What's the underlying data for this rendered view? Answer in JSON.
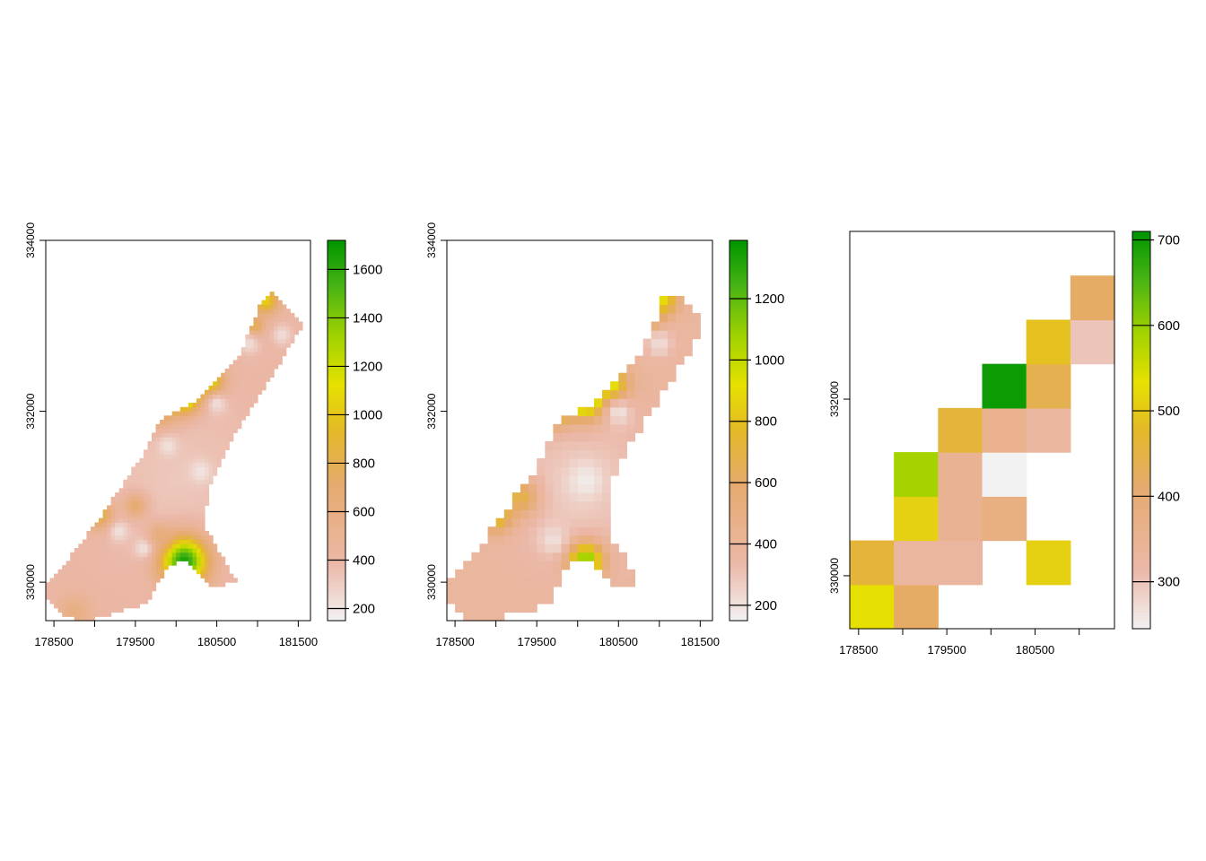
{
  "chart_data": [
    {
      "type": "heatmap",
      "title": "",
      "xlabel": "",
      "ylabel": "",
      "x_ticks": [
        178500,
        179500,
        180500,
        181500
      ],
      "y_ticks": [
        330000,
        332000,
        334000
      ],
      "x_tick_labels": [
        "178500",
        "179500",
        "180500",
        "181500"
      ],
      "y_tick_labels": [
        "330000",
        "332000",
        "334000"
      ],
      "xlim": [
        178400,
        181650
      ],
      "ylim": [
        329550,
        334000
      ],
      "legend": {
        "placement": "right",
        "min": 150,
        "max": 1720,
        "ticks": [
          200,
          400,
          600,
          800,
          1000,
          1200,
          1400,
          1600
        ],
        "tick_labels": [
          "200",
          "400",
          "600",
          "800",
          "1000",
          "1200",
          "1400",
          "1600"
        ]
      },
      "cell_size": 50,
      "region": [
        [
          178350,
          329900
        ],
        [
          178700,
          330300
        ],
        [
          179100,
          330800
        ],
        [
          179600,
          331500
        ],
        [
          179800,
          331900
        ],
        [
          180200,
          332100
        ],
        [
          180400,
          332250
        ],
        [
          180800,
          332700
        ],
        [
          181050,
          333300
        ],
        [
          181200,
          333400
        ],
        [
          181550,
          333000
        ],
        [
          181100,
          332300
        ],
        [
          180700,
          331700
        ],
        [
          180400,
          331100
        ],
        [
          180350,
          330650
        ],
        [
          180750,
          330000
        ],
        [
          180450,
          329950
        ],
        [
          180100,
          330250
        ],
        [
          179900,
          330200
        ],
        [
          179650,
          329750
        ],
        [
          178900,
          329550
        ],
        [
          178600,
          329600
        ]
      ],
      "base": 400,
      "mid": 320,
      "mid_center": [
        180000,
        331200
      ],
      "mid_radius": 1500,
      "hotspots": [
        [
          180100,
          330250,
          200,
          1650
        ],
        [
          180100,
          332200,
          140,
          1500
        ],
        [
          179750,
          332150,
          180,
          1300
        ],
        [
          180400,
          332350,
          130,
          1150
        ],
        [
          181100,
          333300,
          110,
          1050
        ],
        [
          180950,
          333000,
          90,
          850
        ],
        [
          179050,
          330800,
          120,
          900
        ],
        [
          179500,
          330900,
          100,
          700
        ],
        [
          179800,
          330550,
          100,
          650
        ],
        [
          178750,
          329650,
          150,
          600
        ],
        [
          179600,
          332050,
          120,
          1000
        ]
      ],
      "lows": [
        [
          180300,
          331300,
          90,
          200
        ],
        [
          180500,
          332100,
          90,
          230
        ],
        [
          179900,
          331600,
          80,
          220
        ],
        [
          179300,
          330600,
          80,
          220
        ],
        [
          180900,
          332800,
          90,
          240
        ],
        [
          181300,
          332900,
          80,
          230
        ],
        [
          179600,
          330400,
          80,
          220
        ]
      ]
    },
    {
      "type": "heatmap",
      "title": "",
      "xlabel": "",
      "ylabel": "",
      "x_ticks": [
        178500,
        179500,
        180500,
        181500
      ],
      "y_ticks": [
        330000,
        332000,
        334000
      ],
      "x_tick_labels": [
        "178500",
        "179500",
        "180500",
        "181500"
      ],
      "y_tick_labels": [
        "330000",
        "332000",
        "334000"
      ],
      "xlim": [
        178400,
        181650
      ],
      "ylim": [
        329550,
        334000
      ],
      "legend": {
        "placement": "right",
        "min": 150,
        "max": 1390,
        "ticks": [
          200,
          400,
          600,
          800,
          1000,
          1200
        ],
        "tick_labels": [
          "200",
          "400",
          "600",
          "800",
          "1000",
          "1200"
        ]
      },
      "cell_size": 100,
      "region": [
        [
          178350,
          329900
        ],
        [
          178700,
          330300
        ],
        [
          179100,
          330800
        ],
        [
          179600,
          331500
        ],
        [
          179800,
          331900
        ],
        [
          180200,
          332100
        ],
        [
          180400,
          332250
        ],
        [
          180800,
          332700
        ],
        [
          181050,
          333300
        ],
        [
          181200,
          333400
        ],
        [
          181550,
          333000
        ],
        [
          181100,
          332300
        ],
        [
          180700,
          331700
        ],
        [
          180400,
          331100
        ],
        [
          180350,
          330650
        ],
        [
          180750,
          330000
        ],
        [
          180450,
          329950
        ],
        [
          180100,
          330250
        ],
        [
          179900,
          330200
        ],
        [
          179650,
          329750
        ],
        [
          178900,
          329550
        ],
        [
          178600,
          329600
        ]
      ],
      "base": 380,
      "mid": 260,
      "mid_center": [
        180000,
        331100
      ],
      "mid_radius": 1400,
      "hotspots": [
        [
          180100,
          330250,
          150,
          1150
        ],
        [
          180100,
          332200,
          180,
          1300
        ],
        [
          179700,
          332150,
          180,
          1200
        ],
        [
          180400,
          332300,
          150,
          950
        ],
        [
          181050,
          333300,
          120,
          900
        ],
        [
          180900,
          333100,
          100,
          800
        ],
        [
          179000,
          330800,
          150,
          850
        ],
        [
          179300,
          331000,
          150,
          700
        ],
        [
          179600,
          331900,
          100,
          700
        ]
      ],
      "lows": [
        [
          180100,
          331200,
          150,
          170
        ],
        [
          180500,
          332000,
          120,
          200
        ],
        [
          179700,
          330500,
          120,
          210
        ],
        [
          181000,
          332800,
          120,
          220
        ]
      ]
    },
    {
      "type": "heatmap",
      "title": "",
      "xlabel": "",
      "ylabel": "",
      "x_ticks": [
        178500,
        179500,
        180500
      ],
      "y_ticks": [
        330000,
        332000
      ],
      "x_tick_labels": [
        "178500",
        "179500",
        "180500"
      ],
      "y_tick_labels": [
        "330000",
        "332000"
      ],
      "xlim": [
        178400,
        181400
      ],
      "ylim": [
        329400,
        333900
      ],
      "legend": {
        "placement": "right",
        "min": 245,
        "max": 710,
        "ticks": [
          300,
          400,
          500,
          600,
          700
        ],
        "tick_labels": [
          "300",
          "400",
          "500",
          "600",
          "700"
        ]
      },
      "cell_size": 500,
      "cells": [
        {
          "x": 178400,
          "y": 329400,
          "value": 530
        },
        {
          "x": 178900,
          "y": 329400,
          "value": 420
        },
        {
          "x": 178400,
          "y": 329900,
          "value": 460
        },
        {
          "x": 178900,
          "y": 329900,
          "value": 330
        },
        {
          "x": 179400,
          "y": 329900,
          "value": 330
        },
        {
          "x": 180400,
          "y": 329900,
          "value": 510
        },
        {
          "x": 178900,
          "y": 330400,
          "value": 510
        },
        {
          "x": 179400,
          "y": 330400,
          "value": 350
        },
        {
          "x": 179900,
          "y": 330400,
          "value": 380
        },
        {
          "x": 178900,
          "y": 330900,
          "value": 590
        },
        {
          "x": 179400,
          "y": 330900,
          "value": 350
        },
        {
          "x": 179900,
          "y": 330900,
          "value": 245
        },
        {
          "x": 179400,
          "y": 331400,
          "value": 460
        },
        {
          "x": 179900,
          "y": 331400,
          "value": 360
        },
        {
          "x": 180400,
          "y": 331400,
          "value": 330
        },
        {
          "x": 179900,
          "y": 331900,
          "value": 700
        },
        {
          "x": 180400,
          "y": 331900,
          "value": 440
        },
        {
          "x": 180400,
          "y": 332400,
          "value": 490
        },
        {
          "x": 180900,
          "y": 332400,
          "value": 300
        },
        {
          "x": 180900,
          "y": 332900,
          "value": 420
        }
      ]
    }
  ]
}
